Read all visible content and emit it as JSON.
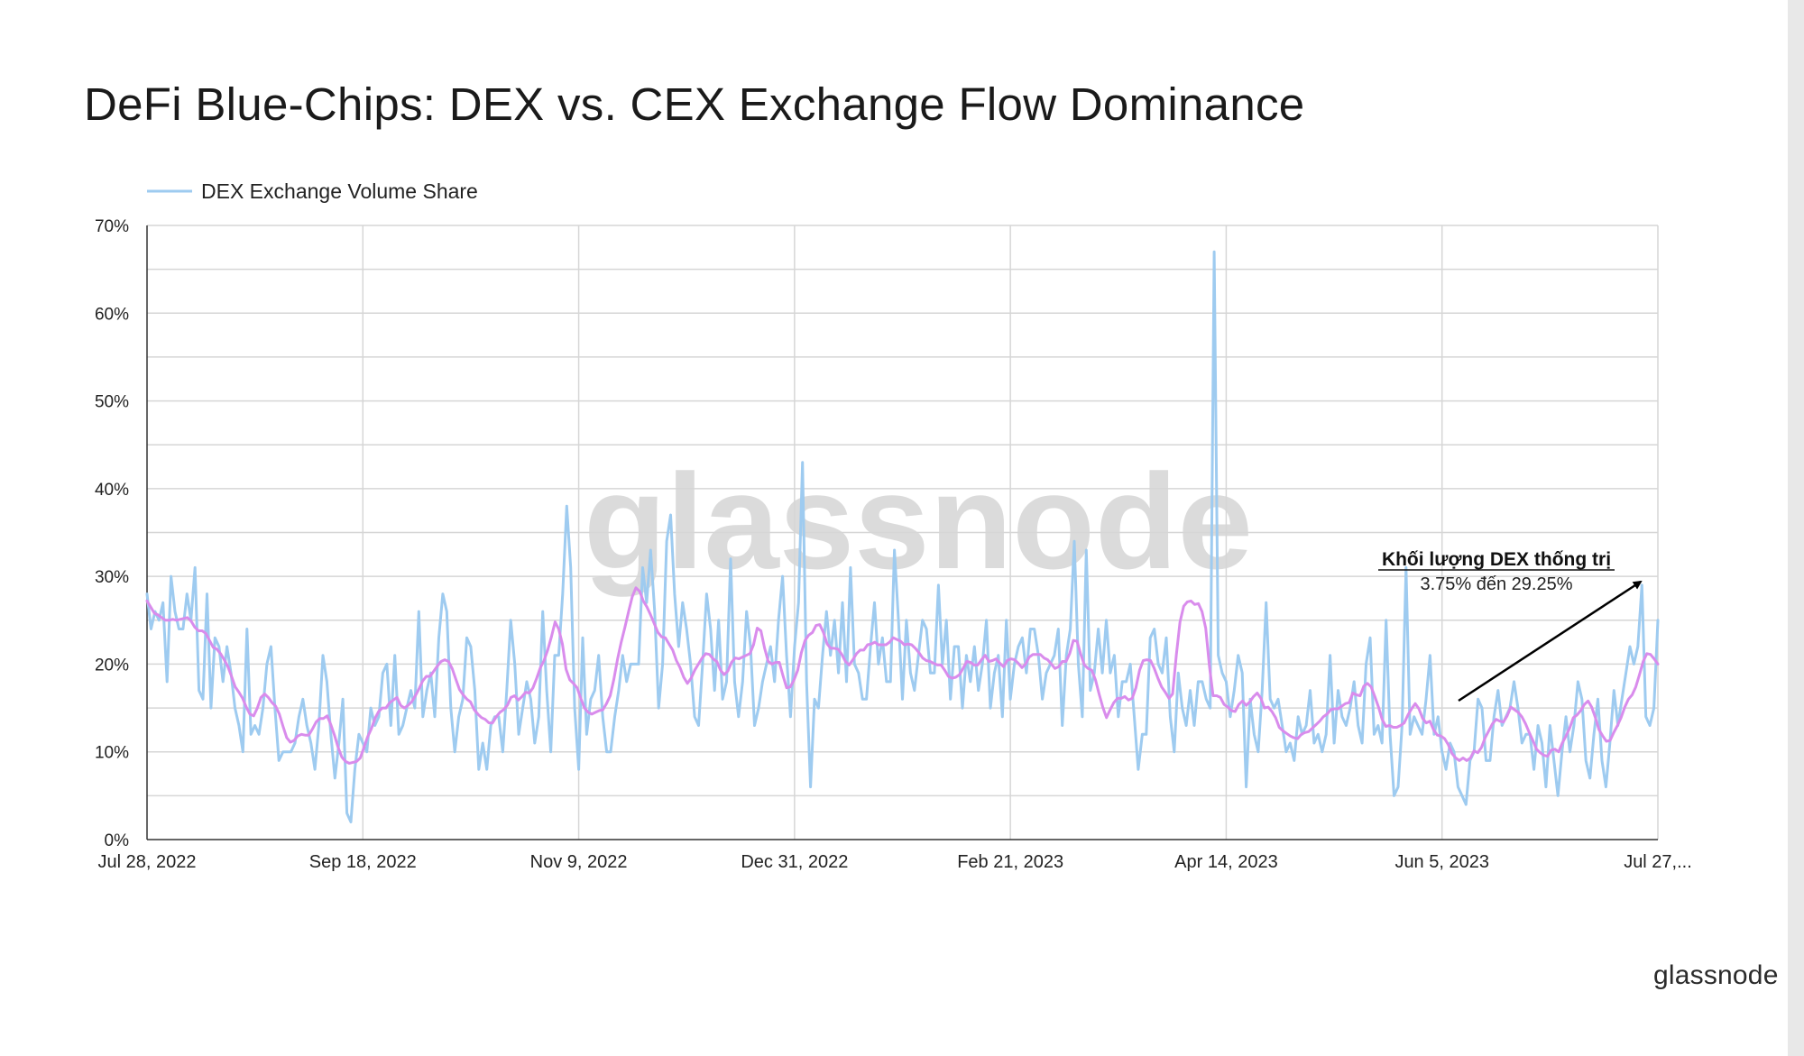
{
  "brand": {
    "logo_text": "glassnode",
    "watermark_text": "glassnode"
  },
  "chart_data": {
    "type": "line",
    "title": "DeFi Blue-Chips: DEX vs. CEX Exchange Flow Dominance",
    "x_start": "2022-07-28",
    "x_end": "2023-07-27",
    "x_ticks": [
      "Jul 28, 2022",
      "Sep 18, 2022",
      "Nov 9, 2022",
      "Dec 31, 2022",
      "Feb 21, 2023",
      "Apr 14, 2023",
      "Jun 5, 2023",
      "Jul 27,..."
    ],
    "y_ticks": [
      "0%",
      "10%",
      "20%",
      "30%",
      "40%",
      "50%",
      "60%",
      "70%"
    ],
    "ylim": [
      0,
      70
    ],
    "grid": true,
    "legend_position": "top-left",
    "series": [
      {
        "name": "DEX Exchange Volume Share",
        "color": "#9ecbf0",
        "values": [
          28,
          24,
          26,
          25,
          27,
          18,
          30,
          26,
          24,
          24,
          28,
          25,
          31,
          17,
          16,
          28,
          15,
          23,
          22,
          18,
          22,
          19,
          15,
          13,
          10,
          24,
          12,
          13,
          12,
          15,
          20,
          22,
          15,
          9,
          10,
          10,
          10,
          11,
          14,
          16,
          13,
          11,
          8,
          13,
          21,
          18,
          12,
          7,
          11,
          16,
          3,
          2,
          8,
          12,
          11,
          10,
          15,
          13,
          14,
          19,
          20,
          13,
          21,
          12,
          13,
          15,
          17,
          15,
          26,
          14,
          17,
          19,
          14,
          23,
          28,
          26,
          15,
          10,
          14,
          16,
          23,
          22,
          17,
          8,
          11,
          8,
          13,
          14,
          14,
          10,
          17,
          25,
          20,
          12,
          15,
          18,
          16,
          11,
          14,
          26,
          17,
          10,
          21,
          21,
          28,
          38,
          31,
          15,
          8,
          23,
          12,
          16,
          17,
          21,
          14,
          10,
          10,
          14,
          17,
          21,
          18,
          20,
          20,
          20,
          31,
          27,
          33,
          26,
          15,
          20,
          34,
          37,
          28,
          22,
          27,
          24,
          20,
          14,
          13,
          20,
          28,
          24,
          17,
          25,
          16,
          18,
          32,
          18,
          14,
          18,
          26,
          22,
          13,
          15,
          18,
          20,
          22,
          18,
          25,
          30,
          21,
          14,
          22,
          27,
          43,
          18,
          6,
          16,
          15,
          21,
          26,
          21,
          25,
          19,
          27,
          18,
          31,
          20,
          19,
          16,
          16,
          22,
          27,
          20,
          23,
          18,
          18,
          33,
          25,
          16,
          25,
          19,
          17,
          21,
          25,
          24,
          19,
          19,
          29,
          20,
          25,
          16,
          22,
          22,
          15,
          21,
          18,
          22,
          17,
          20,
          25,
          15,
          19,
          21,
          14,
          25,
          16,
          20,
          22,
          23,
          19,
          24,
          24,
          21,
          16,
          19,
          20,
          21,
          24,
          13,
          21,
          24,
          34,
          20,
          14,
          33,
          17,
          19,
          24,
          19,
          25,
          19,
          21,
          14,
          18,
          18,
          20,
          14,
          8,
          12,
          12,
          23,
          24,
          20,
          19,
          23,
          14,
          10,
          19,
          15,
          13,
          17,
          13,
          18,
          18,
          16,
          15,
          67,
          21,
          19,
          18,
          14,
          17,
          21,
          19,
          6,
          16,
          12,
          10,
          17,
          27,
          16,
          15,
          16,
          13,
          10,
          11,
          9,
          14,
          12,
          13,
          17,
          11,
          12,
          10,
          12,
          21,
          11,
          17,
          14,
          13,
          15,
          18,
          13,
          11,
          20,
          23,
          12,
          13,
          11,
          25,
          12,
          5,
          6,
          13,
          31,
          12,
          14,
          13,
          12,
          16,
          21,
          12,
          14,
          10,
          8,
          11,
          10,
          6,
          5,
          4,
          9,
          10,
          16,
          15,
          9,
          9,
          14,
          17,
          13,
          14,
          15,
          18,
          15,
          11,
          12,
          12,
          8,
          13,
          11,
          6,
          13,
          9,
          5,
          10,
          14,
          10,
          13,
          18,
          16,
          9,
          7,
          12,
          16,
          9,
          6,
          11,
          17,
          13,
          16,
          19,
          22,
          20,
          22,
          29,
          14,
          13,
          15,
          25
        ]
      },
      {
        "name": "",
        "color": "#d98cec",
        "values": [
          27.2,
          26.5,
          25.8,
          25.6,
          25.3,
          25,
          25,
          25.1,
          25,
          25.1,
          25.2,
          25.3,
          24.9,
          24.2,
          23.8,
          23.8,
          23.5,
          22.7,
          21.9,
          21.7,
          21.2,
          20.5,
          19.7,
          18.6,
          17.4,
          16.8,
          16.1,
          15.1,
          14.3,
          14.1,
          15,
          16.2,
          16.6,
          16.2,
          15.6,
          15.2,
          14.3,
          12.9,
          11.6,
          11.1,
          11.3,
          11.8,
          12,
          11.9,
          11.9,
          12.6,
          13.4,
          13.8,
          13.8,
          14.1,
          13.1,
          11.9,
          10.5,
          9.4,
          8.9,
          8.7,
          8.8,
          8.9,
          9.3,
          10.5,
          11.7,
          12.6,
          13.8,
          14.6,
          15,
          15,
          15.6,
          15.9,
          16.2,
          15.3,
          15,
          15.3,
          15.7,
          16.4,
          17.2,
          18.1,
          18.6,
          18.6,
          19.2,
          19.8,
          20.3,
          20.5,
          20.3,
          19.5,
          18.3,
          17.1,
          16.5,
          16,
          15.7,
          14.8,
          14.3,
          13.9,
          13.7,
          13.3,
          13.3,
          14,
          14.5,
          14.8,
          15.3,
          16.2,
          16.4,
          15.9,
          16.3,
          16.8,
          16.7,
          17.3,
          18.4,
          19.6,
          20.4,
          21.6,
          23.1,
          24.8,
          24,
          22.3,
          19.4,
          18.2,
          17.8,
          17.3,
          16.1,
          15,
          14.5,
          14.3,
          14.5,
          14.7,
          14.8,
          15.5,
          16.4,
          18.3,
          20.6,
          22.5,
          24.2,
          26,
          27.7,
          28.7,
          28.3,
          27.2,
          26.5,
          25.6,
          24.6,
          23.6,
          23.1,
          23,
          22.3,
          21.6,
          20.4,
          19.6,
          18.5,
          17.8,
          18.4,
          19.3,
          20,
          20.7,
          21.2,
          21.1,
          20.6,
          20.3,
          19.3,
          18.8,
          19.2,
          20.2,
          20.7,
          20.6,
          20.8,
          21,
          21.2,
          22.2,
          24.1,
          23.8,
          21.8,
          20.3,
          20,
          20.2,
          20.2,
          18.7,
          17.3,
          17.4,
          18.2,
          19.3,
          21.3,
          22.7,
          23.3,
          23.6,
          24.4,
          24.5,
          23.6,
          22.3,
          21.8,
          21.8,
          21.7,
          21.1,
          20.3,
          19.9,
          20.5,
          21.2,
          21.6,
          21.6,
          22.2,
          22.3,
          22.5,
          22.2,
          22.2,
          22.2,
          22.5,
          23,
          22.8,
          22.6,
          22.2,
          22.3,
          22.2,
          21.8,
          21.3,
          20.7,
          20.4,
          20.3,
          20.1,
          19.9,
          19.9,
          19.3,
          18.6,
          18.4,
          18.5,
          18.8,
          19.5,
          20.3,
          20.2,
          19.9,
          19.9,
          20.5,
          21,
          20.3,
          20.4,
          20.6,
          20.1,
          19.7,
          20.4,
          20.6,
          20.5,
          20.1,
          19.6,
          20,
          20.8,
          21.1,
          21.1,
          21.1,
          20.7,
          20.5,
          20,
          19.5,
          19.7,
          20.3,
          20.3,
          21.2,
          22.7,
          22.6,
          21.1,
          19.9,
          19.5,
          19.3,
          18.2,
          16.6,
          15.1,
          13.9,
          14.8,
          15.6,
          16.1,
          16.1,
          16.3,
          15.9,
          16.1,
          17.3,
          19.3,
          20.4,
          20.5,
          20.4,
          19.5,
          18.4,
          17.4,
          16.8,
          16.1,
          16.6,
          21,
          24.8,
          26.6,
          27.1,
          27.2,
          26.8,
          26.9,
          26,
          24.1,
          19.8,
          16.4,
          16.4,
          16.2,
          15.4,
          15.1,
          14.7,
          14.6,
          15.4,
          15.8,
          15.3,
          15.7,
          16.3,
          16.7,
          16.1,
          15,
          15.1,
          14.6,
          13.9,
          12.8,
          12.4,
          12.1,
          11.8,
          11.6,
          11.5,
          12,
          12.2,
          12.3,
          12.7,
          13.1,
          13.5,
          14,
          14.3,
          14.8,
          14.9,
          14.9,
          15.2,
          15.5,
          15.6,
          16.7,
          16.5,
          16.4,
          17.5,
          17.8,
          17.4,
          16.3,
          15.1,
          13.7,
          12.9,
          13,
          12.8,
          12.8,
          13,
          13.3,
          14.2,
          14.9,
          15.5,
          14.9,
          13.8,
          13.3,
          13.5,
          12.5,
          11.9,
          11.8,
          11.5,
          10.8,
          9.8,
          9.3,
          9,
          9.3,
          9,
          9.3,
          10.1,
          9.9,
          10.5,
          11.6,
          12.4,
          13.2,
          13.7,
          13.5,
          13.4,
          14.1,
          15.1,
          14.8,
          14.5,
          14,
          13.2,
          12.2,
          11.3,
          10.3,
          9.9,
          9.6,
          9.5,
          10.2,
          10.3,
          10,
          11,
          11.8,
          12.7,
          13.9,
          14.2,
          14.7,
          15.4,
          15.8,
          15.1,
          13.9,
          12.5,
          11.8,
          11.2,
          11.3,
          12.2,
          13,
          13.9,
          15.1,
          16,
          16.5,
          17.4,
          18.8,
          20.3,
          21.2,
          21.1,
          20.6,
          20
        ]
      }
    ],
    "annotation": {
      "title": "Khối lượng DEX thống trị",
      "subtitle": "3.75% đến 29.25%"
    }
  }
}
